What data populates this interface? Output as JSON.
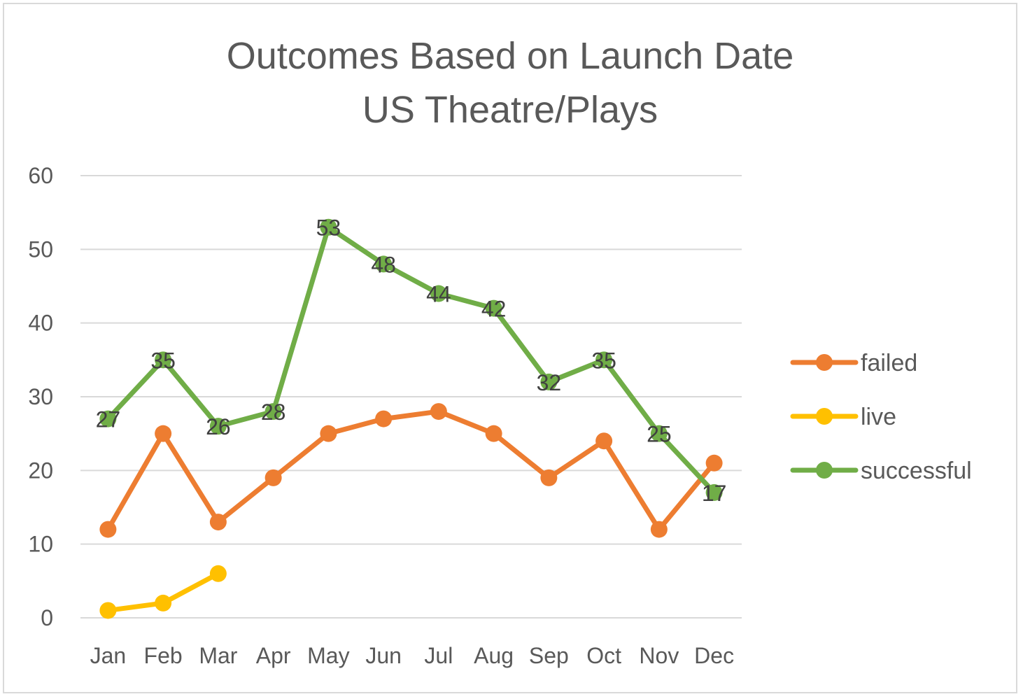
{
  "chart_data": {
    "type": "line",
    "title": [
      "Outcomes Based on Launch Date",
      "US Theatre/Plays"
    ],
    "categories": [
      "Jan",
      "Feb",
      "Mar",
      "Apr",
      "May",
      "Jun",
      "Jul",
      "Aug",
      "Sep",
      "Oct",
      "Nov",
      "Dec"
    ],
    "ylim": [
      0,
      60
    ],
    "yticks": [
      0,
      10,
      20,
      30,
      40,
      50,
      60
    ],
    "grid": true,
    "legend_position": "right",
    "series": [
      {
        "name": "failed",
        "color": "#ED7D31",
        "values": [
          12,
          25,
          13,
          19,
          25,
          27,
          28,
          25,
          19,
          24,
          12,
          21
        ],
        "data_labels": false
      },
      {
        "name": "live",
        "color": "#FFC000",
        "values": [
          1,
          2,
          6,
          null,
          null,
          null,
          null,
          null,
          null,
          null,
          null,
          null
        ],
        "data_labels": false
      },
      {
        "name": "successful",
        "color": "#70AD47",
        "values": [
          27,
          35,
          26,
          28,
          53,
          48,
          44,
          42,
          32,
          35,
          25,
          17
        ],
        "data_labels": true
      }
    ]
  }
}
